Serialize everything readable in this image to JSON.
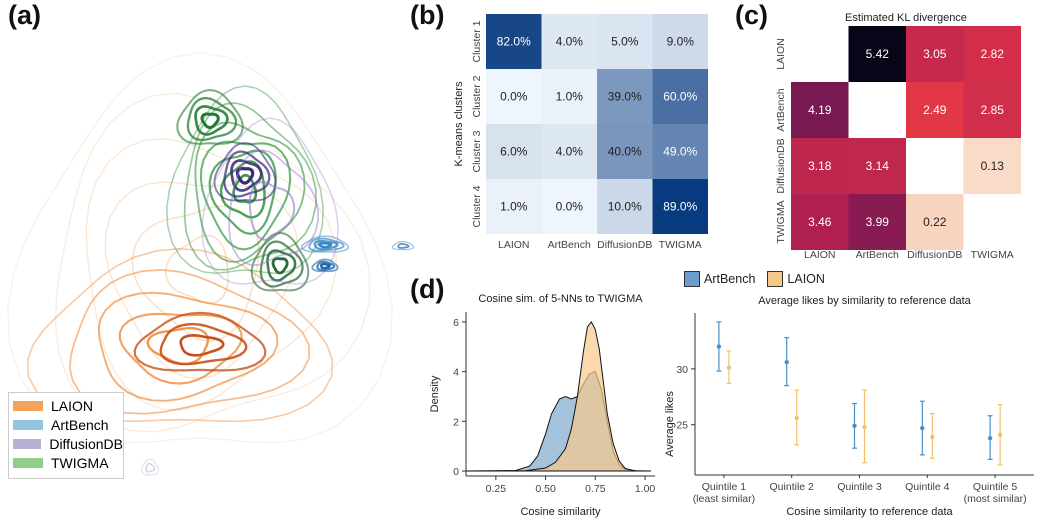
{
  "panels": {
    "a": "(a)",
    "b": "(b)",
    "c": "(c)",
    "d": "(d)"
  },
  "colors": {
    "laion": "#f4a259",
    "artbench": "#92c5de",
    "diffusiondb": "#b7b1d6",
    "twigma": "#8fcf87"
  },
  "legend_a": [
    {
      "label": "LAION",
      "color": "#f4a259"
    },
    {
      "label": "ArtBench",
      "color": "#92c5de"
    },
    {
      "label": "DiffusionDB",
      "color": "#b7b1d6"
    },
    {
      "label": "TWIGMA",
      "color": "#8fcf87"
    }
  ],
  "chart_data": [
    {
      "panel": "a",
      "type": "other",
      "description_kind": "kde-contours",
      "series": [
        {
          "name": "LAION"
        },
        {
          "name": "ArtBench"
        },
        {
          "name": "DiffusionDB"
        },
        {
          "name": "TWIGMA"
        }
      ]
    },
    {
      "panel": "b",
      "type": "heatmap",
      "title": "",
      "ylabel": "K-means clusters",
      "rows": [
        "Cluster 1",
        "Cluster 2",
        "Cluster 3",
        "Cluster 4"
      ],
      "cols": [
        "LAION",
        "ArtBench",
        "DiffusionDB",
        "TWIGMA"
      ],
      "values": [
        [
          82.0,
          4.0,
          5.0,
          9.0
        ],
        [
          0.0,
          1.0,
          39.0,
          60.0
        ],
        [
          6.0,
          4.0,
          40.0,
          49.0
        ],
        [
          1.0,
          0.0,
          10.0,
          89.0
        ]
      ],
      "labels": [
        [
          "82.0%",
          "4.0%",
          "5.0%",
          "9.0%"
        ],
        [
          "0.0%",
          "1.0%",
          "39.0%",
          "60.0%"
        ],
        [
          "6.0%",
          "4.0%",
          "40.0%",
          "49.0%"
        ],
        [
          "1.0%",
          "0.0%",
          "10.0%",
          "89.0%"
        ]
      ]
    },
    {
      "panel": "c",
      "type": "heatmap",
      "title": "Estimated KL divergence",
      "rows": [
        "LAION",
        "ArtBench",
        "DiffusionDB",
        "TWIGMA"
      ],
      "cols": [
        "LAION",
        "ArtBench",
        "DiffusionDB",
        "TWIGMA"
      ],
      "values": [
        [
          null,
          5.42,
          3.05,
          2.82
        ],
        [
          4.19,
          null,
          2.49,
          2.85
        ],
        [
          3.18,
          3.14,
          null,
          0.13
        ],
        [
          3.46,
          3.99,
          0.22,
          null
        ]
      ],
      "labels": [
        [
          "",
          "5.42",
          "3.05",
          "2.82"
        ],
        [
          "4.19",
          "",
          "2.49",
          "2.85"
        ],
        [
          "3.18",
          "3.14",
          "",
          "0.13"
        ],
        [
          "3.46",
          "3.99",
          "0.22",
          ""
        ]
      ]
    },
    {
      "panel": "d-left",
      "type": "area",
      "title": "Cosine sim. of 5-NNs to TWIGMA",
      "xlabel": "Cosine similarity",
      "ylabel": "Density",
      "xlim": [
        0.1,
        1.05
      ],
      "ylim": [
        -0.2,
        6.4
      ],
      "xticks": [
        "0.25",
        "0.50",
        "0.75",
        "1.00"
      ],
      "xtick_values": [
        0.25,
        0.5,
        0.75,
        1.0
      ],
      "yticks": [
        "0",
        "2",
        "4",
        "6"
      ],
      "ytick_values": [
        0,
        2,
        4,
        6
      ],
      "series": [
        {
          "name": "ArtBench",
          "color": "#5b8fbe",
          "x": [
            0.1,
            0.35,
            0.42,
            0.46,
            0.5,
            0.53,
            0.57,
            0.6,
            0.63,
            0.66,
            0.69,
            0.72,
            0.75,
            0.78,
            0.81,
            0.84,
            0.87,
            0.9,
            0.95,
            1.03
          ],
          "y": [
            0,
            0.02,
            0.2,
            0.6,
            1.5,
            2.3,
            2.9,
            3.0,
            2.9,
            3.0,
            3.5,
            3.9,
            4.0,
            3.3,
            2.0,
            0.8,
            0.25,
            0.06,
            0.01,
            0
          ]
        },
        {
          "name": "LAION",
          "color": "#f6c98a",
          "x": [
            0.1,
            0.4,
            0.5,
            0.55,
            0.6,
            0.63,
            0.66,
            0.69,
            0.71,
            0.73,
            0.75,
            0.77,
            0.79,
            0.81,
            0.84,
            0.87,
            0.9,
            0.95,
            1.03
          ],
          "y": [
            0,
            0.01,
            0.12,
            0.35,
            0.9,
            1.7,
            3.0,
            4.8,
            5.8,
            6.0,
            5.7,
            4.9,
            3.6,
            2.3,
            1.1,
            0.4,
            0.1,
            0.01,
            0
          ]
        }
      ]
    },
    {
      "panel": "d-right",
      "type": "scatter",
      "title": "Average likes by similarity to reference data",
      "xlabel": "Cosine similarity to reference data",
      "ylabel": "Average likes",
      "ylim": [
        20.5,
        35
      ],
      "yticks": [
        "25",
        "30"
      ],
      "ytick_values": [
        25,
        30
      ],
      "categories": [
        "Quintile 1\n(least similar)",
        "Quintile 2",
        "Quintile 3",
        "Quintile 4",
        "Quintile 5\n(most similar)"
      ],
      "series": [
        {
          "name": "ArtBench",
          "color": "#4a90c8",
          "values": [
            32.0,
            30.6,
            24.9,
            24.7,
            23.8
          ],
          "err_low": [
            29.8,
            28.5,
            22.9,
            22.3,
            21.9
          ],
          "err_high": [
            34.2,
            32.8,
            26.9,
            27.1,
            25.8
          ]
        },
        {
          "name": "LAION",
          "color": "#f3c06d",
          "values": [
            30.1,
            25.6,
            24.8,
            23.9,
            24.1
          ],
          "err_low": [
            28.7,
            23.2,
            21.6,
            22.0,
            21.4
          ],
          "err_high": [
            31.6,
            28.1,
            28.1,
            26.0,
            26.8
          ]
        }
      ]
    }
  ]
}
